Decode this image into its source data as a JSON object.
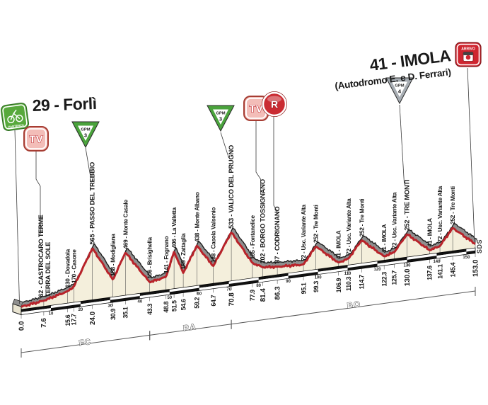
{
  "header": {
    "start_title": "29 - Forlì",
    "finish_title": "41 - IMOLA",
    "finish_subtitle": "(Autodromo E. e D. Ferrari)"
  },
  "watermark": "SDS",
  "icons": {
    "partenza": "PARTENZA",
    "arrivo": "ARRIVO",
    "tv": "TV",
    "refreshment": "R",
    "gpm": "GPM"
  },
  "colors": {
    "red_line": "#b8232a",
    "ribbon_gray": "#8f8f8f",
    "cream_fill": "#f4efdc",
    "gpm3_green": "#4aa33c",
    "gpm4_silver": "#a7adb3",
    "partenza_green": "#58a93c",
    "arrivo_red": "#cf2630"
  },
  "chart_data": {
    "type": "area",
    "x_unit": "km",
    "y_unit": "m",
    "xlim": [
      0,
      153
    ],
    "km_axis_ticks": [
      10,
      20,
      30,
      40,
      50,
      60,
      70,
      80,
      90,
      100,
      110,
      120,
      130,
      140,
      150
    ],
    "start": {
      "km_label": "0.0",
      "name": "29 - Forlì",
      "elev": 29
    },
    "finish": {
      "km_label": "153.0",
      "name": "41 - IMOLA (Autodromo E. e D. Ferrari)",
      "elev": 41
    },
    "points": [
      {
        "km": 0.0,
        "km_label": "0.0",
        "elev": 29,
        "label": null,
        "bold": true
      },
      {
        "km": 7.6,
        "km_label": "7.6",
        "elev": 62,
        "label": "62 - CASTROCARO TERME",
        "label2": "TERRA DEL SOLE",
        "bold": true,
        "icon": "tv"
      },
      {
        "km": 15.6,
        "km_label": "15.6",
        "elev": 130,
        "label": "130 - Dovadola"
      },
      {
        "km": 17.7,
        "km_label": "17.7",
        "elev": 170,
        "label": "170 - Casone"
      },
      {
        "km": 24.0,
        "km_label": "24.0",
        "elev": 565,
        "label": "565 - PASSO DEL TREBBIO",
        "bold": true,
        "gpm": 3
      },
      {
        "km": 30.9,
        "km_label": "30.9",
        "elev": 188,
        "label": "188 - Modigliana"
      },
      {
        "km": 35.1,
        "km_label": "35.1",
        "elev": 469,
        "label": "469 - Monte Casale"
      },
      {
        "km": 43.3,
        "km_label": "43.3",
        "elev": 106,
        "label": "106 - Brisighella"
      },
      {
        "km": 48.8,
        "km_label": "48.8",
        "elev": 141,
        "label": "141 - Fognano"
      },
      {
        "km": 51.5,
        "km_label": "51.5",
        "elev": 406,
        "label": "406 - La Valletta"
      },
      {
        "km": 54.6,
        "km_label": "54.6",
        "elev": 159,
        "label": "159 - Zattaglia"
      },
      {
        "km": 59.2,
        "km_label": "59.2",
        "elev": 438,
        "label": "438 - Monte Albano"
      },
      {
        "km": 64.7,
        "km_label": "64.7",
        "elev": 188,
        "label": "188 - Casola Valsenio"
      },
      {
        "km": 70.8,
        "km_label": "70.8",
        "elev": 533,
        "label": "533 - VALICO DEL PRUGNO",
        "bold": true,
        "gpm": 3
      },
      {
        "km": 77.9,
        "km_label": "77.9",
        "elev": 165,
        "label": "165 - Fontanelice"
      },
      {
        "km": 81.4,
        "km_label": "81.4",
        "elev": 102,
        "label": "102 - BORGO TOSSIGNANO",
        "bold": true,
        "icon": "tv"
      },
      {
        "km": 86.3,
        "km_label": "86.3",
        "elev": 87,
        "label": "87 - CODRIGNANO",
        "bold": true,
        "icon": "r"
      },
      {
        "km": 95.1,
        "km_label": "95.1",
        "elev": 72,
        "label": "72 - Usc. Variante Alta"
      },
      {
        "km": 99.3,
        "km_label": "99.3",
        "elev": 252,
        "label": "252 - Tre Monti"
      },
      {
        "km": 106.9,
        "km_label": "106.9",
        "elev": 41,
        "label": "41 - IMOLA"
      },
      {
        "km": 110.3,
        "km_label": "110.3",
        "elev": 72,
        "label": "72 - Usc. Variante Alta"
      },
      {
        "km": 114.7,
        "km_label": "114.7",
        "elev": 252,
        "label": "252 - Tre Monti"
      },
      {
        "km": 122.3,
        "km_label": "122.3",
        "elev": 41,
        "label": "41 - IMOLA"
      },
      {
        "km": 125.7,
        "km_label": "125.7",
        "elev": 72,
        "label": "72 - Usc. Variante Alta"
      },
      {
        "km": 130.0,
        "km_label": "130.0",
        "elev": 252,
        "label": "252 - TRE MONTI",
        "bold": true,
        "gpm": 4
      },
      {
        "km": 137.6,
        "km_label": "137.6",
        "elev": 41,
        "label": "41 - IMOLA"
      },
      {
        "km": 141.1,
        "km_label": "141.1",
        "elev": 72,
        "label": "72 - Usc. Variante Alta"
      },
      {
        "km": 145.4,
        "km_label": "145.4",
        "elev": 252,
        "label": "252 - Tre Monti"
      },
      {
        "km": 153.0,
        "km_label": "153.0",
        "elev": 41,
        "label": null,
        "bold": true
      }
    ],
    "gpm_climbs": [
      {
        "km": 24.0,
        "name": "PASSO DEL TREBBIO",
        "category": 3
      },
      {
        "km": 70.8,
        "name": "VALICO DEL PRUGNO",
        "category": 3
      },
      {
        "km": 130.0,
        "name": "TRE MONTI",
        "category": 4
      }
    ],
    "sprint_tv_km": [
      7.6,
      81.4
    ],
    "refreshment_km": [
      86.3
    ],
    "provinces": [
      {
        "label": "FC",
        "from": 0,
        "to": 43.3
      },
      {
        "label": "RA",
        "from": 43.3,
        "to": 70.8
      },
      {
        "label": "BO",
        "from": 70.8,
        "to": 153
      }
    ]
  }
}
